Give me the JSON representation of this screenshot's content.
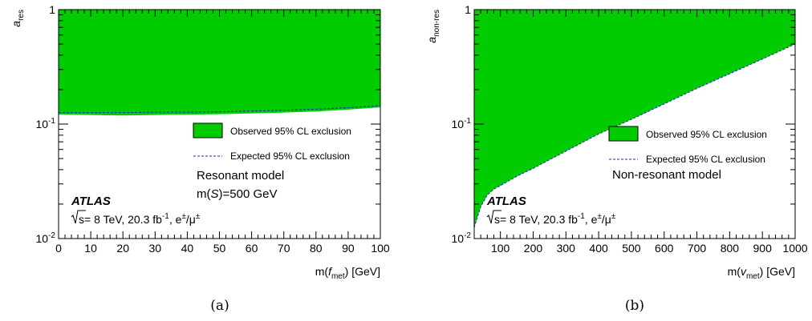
{
  "chart_data": [
    {
      "type": "area",
      "panel_label": "(a)",
      "xlabel": {
        "main": "m(",
        "var": "f",
        "sub": "met",
        "tail": ") [GeV]"
      },
      "ylabel": {
        "var": "a",
        "sub": "res"
      },
      "xlim": [
        0,
        100
      ],
      "ylim": [
        0.01,
        1
      ],
      "yscale": "log",
      "xticks": [
        0,
        10,
        20,
        30,
        40,
        50,
        60,
        70,
        80,
        90,
        100
      ],
      "xtick_labels": [
        "0",
        "10",
        "20",
        "30",
        "40",
        "50",
        "60",
        "70",
        "80",
        "90",
        "100"
      ],
      "yticks": [
        {
          "value": 1,
          "label": "1"
        },
        {
          "value": 0.1,
          "label": "10",
          "exp": "-1"
        },
        {
          "value": 0.01,
          "label": "10",
          "exp": "-2"
        }
      ],
      "observed": {
        "x": [
          0,
          10,
          20,
          30,
          40,
          50,
          60,
          70,
          80,
          90,
          100
        ],
        "y": [
          0.121,
          0.12,
          0.119,
          0.12,
          0.121,
          0.122,
          0.124,
          0.126,
          0.129,
          0.134,
          0.14
        ]
      },
      "expected": {
        "x": [
          0,
          10,
          20,
          30,
          40,
          50,
          60,
          70,
          80,
          90,
          100
        ],
        "y": [
          0.126,
          0.126,
          0.126,
          0.127,
          0.127,
          0.128,
          0.13,
          0.132,
          0.135,
          0.139,
          0.145
        ]
      },
      "legend": {
        "placement": "right-middle",
        "observed": "Observed 95% CL exclusion",
        "expected": "Expected 95% CL exclusion"
      },
      "model": {
        "line1": "Resonant model",
        "line2_pre": "m(",
        "line2_var": "S",
        "line2_post": ")=500 GeV"
      },
      "atlas": {
        "label": "ATLAS",
        "info_pre": "s",
        "info_mid": "= 8 TeV, 20.3 fb",
        "info_exp": "-1",
        "info_post": ", e",
        "pm": "±",
        "slash": "/μ"
      },
      "colors": {
        "fill": "#00cc00",
        "expected_line": "#2222cc"
      }
    },
    {
      "type": "area",
      "panel_label": "(b)",
      "xlabel": {
        "main": "m(",
        "var": "v",
        "sub": "met",
        "tail": ") [GeV]"
      },
      "ylabel": {
        "var": "a",
        "sub": "non-res"
      },
      "xlim": [
        20,
        1000
      ],
      "ylim": [
        0.01,
        1
      ],
      "yscale": "log",
      "xticks": [
        100,
        200,
        300,
        400,
        500,
        600,
        700,
        800,
        900,
        1000
      ],
      "xtick_labels": [
        "100",
        "200",
        "300",
        "400",
        "500",
        "600",
        "700",
        "800",
        "900",
        "1000"
      ],
      "yticks": [
        {
          "value": 1,
          "label": "1"
        },
        {
          "value": 0.1,
          "label": "10",
          "exp": "-1"
        },
        {
          "value": 0.01,
          "label": "10",
          "exp": "-2"
        }
      ],
      "observed": {
        "x": [
          20,
          40,
          60,
          80,
          100,
          150,
          200,
          300,
          400,
          500,
          600,
          700,
          800,
          900,
          1000
        ],
        "y": [
          0.0125,
          0.019,
          0.024,
          0.027,
          0.029,
          0.035,
          0.041,
          0.058,
          0.082,
          0.11,
          0.15,
          0.205,
          0.275,
          0.37,
          0.5
        ]
      },
      "expected": {
        "x": [
          20,
          40,
          60,
          80,
          100,
          150,
          200,
          300,
          400,
          500,
          600,
          700,
          800,
          900,
          1000
        ],
        "y": [
          0.0125,
          0.019,
          0.024,
          0.027,
          0.029,
          0.035,
          0.041,
          0.058,
          0.082,
          0.11,
          0.15,
          0.205,
          0.275,
          0.37,
          0.5
        ]
      },
      "legend": {
        "placement": "right-middle",
        "observed": "Observed 95% CL exclusion",
        "expected": "Expected 95% CL exclusion"
      },
      "model": {
        "line1": "Non-resonant model"
      },
      "atlas": {
        "label": "ATLAS",
        "info_pre": "s",
        "info_mid": "= 8 TeV, 20.3 fb",
        "info_exp": "-1",
        "info_post": ", e",
        "pm": "±",
        "slash": "/μ"
      },
      "colors": {
        "fill": "#00cc00",
        "expected_line": "#2222cc"
      }
    }
  ]
}
